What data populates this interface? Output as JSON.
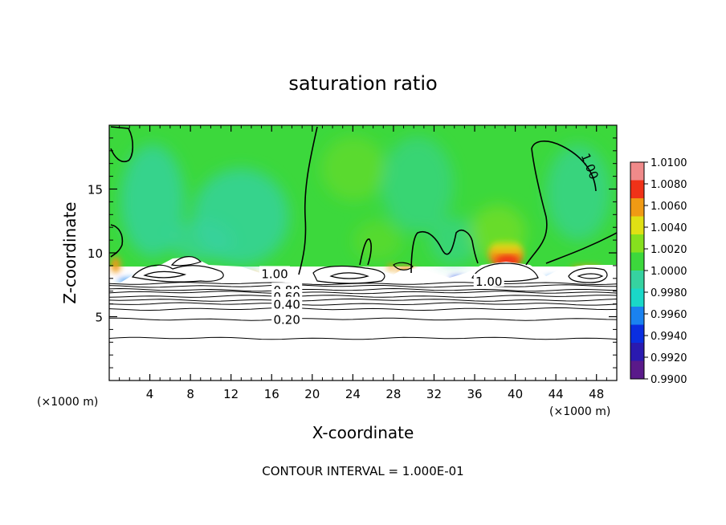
{
  "chart_data": {
    "type": "heatmap",
    "title": "saturation ratio",
    "xlabel": "X-coordinate",
    "ylabel": "Z-coordinate",
    "x_unit_left": "(×1000 m)",
    "x_unit_right": "(×1000 m)",
    "xlim": [
      0,
      50
    ],
    "ylim": [
      0,
      20
    ],
    "xticks": [
      4,
      8,
      12,
      16,
      20,
      24,
      28,
      32,
      36,
      40,
      44,
      48
    ],
    "xtick_labels": [
      "4",
      "8",
      "12",
      "16",
      "20",
      "24",
      "28",
      "32",
      "36",
      "40",
      "44",
      "48"
    ],
    "yticks": [
      5,
      10,
      15
    ],
    "ytick_labels": [
      "5",
      "10",
      "15"
    ],
    "footer": "CONTOUR INTERVAL = 1.000E-01",
    "colorbar": {
      "levels": [
        0.99,
        0.992,
        0.994,
        0.996,
        0.998,
        1.0,
        1.002,
        1.004,
        1.006,
        1.008,
        1.01
      ],
      "labels": [
        "0.9900",
        "0.9920",
        "0.9940",
        "0.9960",
        "0.9980",
        "1.0000",
        "1.0020",
        "1.0040",
        "1.0060",
        "1.0080",
        "1.0100"
      ],
      "colors": [
        "#5a1a8a",
        "#2a1ab0",
        "#0a2ee0",
        "#1a82f0",
        "#1ad8c8",
        "#36d2a0",
        "#3cd83c",
        "#86e01e",
        "#e0e014",
        "#f09a14",
        "#f03218",
        "#f08a8a"
      ]
    },
    "contour_labels": [
      {
        "text": "1.00",
        "x": 16.3,
        "z": 8.4
      },
      {
        "text": "0.80",
        "x": 17.5,
        "z": 7.1
      },
      {
        "text": "0.60",
        "x": 17.5,
        "z": 6.6
      },
      {
        "text": "0.40",
        "x": 17.5,
        "z": 6.0
      },
      {
        "text": "0.20",
        "x": 17.5,
        "z": 4.8
      },
      {
        "text": "1.00",
        "x": 37.4,
        "z": 7.8
      },
      {
        "text": "1.00",
        "x": 47.4,
        "z": 16.8
      }
    ],
    "below_cloud_contours_z": [
      3.3,
      4.8,
      5.6,
      6.0,
      6.3,
      6.6,
      6.9,
      7.1,
      7.4,
      7.6
    ]
  }
}
